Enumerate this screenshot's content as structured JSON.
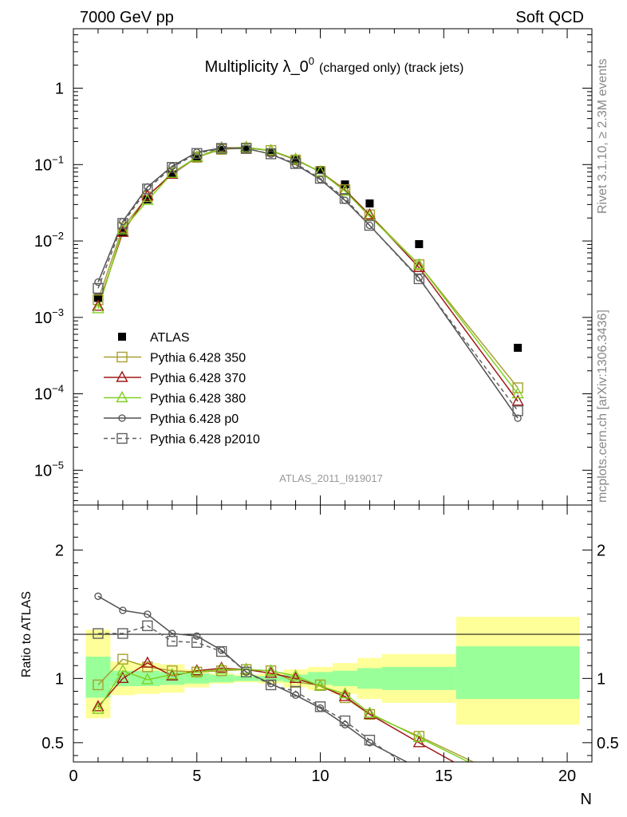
{
  "header": {
    "left": "7000 GeV pp",
    "right": "Soft QCD"
  },
  "side_labels": {
    "rivet": "Rivet 3.1.10, ≥ 2.3M events",
    "mcplots": "mcplots.cern.ch [arXiv:1306.3436]"
  },
  "chart_data": [
    {
      "panel": "main",
      "type": "line",
      "title_main": "Multiplicity λ_0",
      "title_sup": "0",
      "title_suffix": "(charged only) (track jets)",
      "watermark": "ATLAS_2011_I919017",
      "xlim": [
        0,
        21
      ],
      "ylim": [
        3.5e-06,
        6
      ],
      "yscale": "log",
      "yticks": [
        {
          "v": 1e-05,
          "base": "10",
          "exp": "−5"
        },
        {
          "v": 0.0001,
          "base": "10",
          "exp": "−4"
        },
        {
          "v": 0.001,
          "base": "10",
          "exp": "−3"
        },
        {
          "v": 0.01,
          "base": "10",
          "exp": "−2"
        },
        {
          "v": 0.1,
          "base": "10",
          "exp": "−1"
        },
        {
          "v": 1,
          "base": "1",
          "exp": ""
        }
      ],
      "legend_position": "bottom-left",
      "series": [
        {
          "name": "ATLAS",
          "color": "#000000",
          "marker": "filled-square",
          "line": "none",
          "x": [
            1,
            2,
            3,
            4,
            5,
            6,
            7,
            8,
            9,
            10,
            11,
            12,
            14,
            18
          ],
          "y": [
            0.0018,
            0.013,
            0.035,
            0.074,
            0.12,
            0.155,
            0.158,
            0.145,
            0.115,
            0.085,
            0.055,
            0.031,
            0.0091,
            0.0004
          ]
        },
        {
          "name": "Pythia 6.428 350",
          "color": "#a8a030",
          "marker": "open-square",
          "line": "solid",
          "x": [
            1,
            2,
            3,
            4,
            5,
            6,
            7,
            8,
            9,
            10,
            11,
            12,
            14,
            18
          ],
          "y": [
            0.0017,
            0.015,
            0.038,
            0.078,
            0.125,
            0.158,
            0.165,
            0.153,
            0.115,
            0.081,
            0.047,
            0.022,
            0.0049,
            0.00012
          ]
        },
        {
          "name": "Pythia 6.428 370",
          "color": "#a01818",
          "marker": "open-triangle",
          "line": "solid",
          "x": [
            1,
            2,
            3,
            4,
            5,
            6,
            7,
            8,
            9,
            10,
            11,
            12,
            14,
            18
          ],
          "y": [
            0.0014,
            0.013,
            0.039,
            0.075,
            0.125,
            0.165,
            0.168,
            0.152,
            0.117,
            0.08,
            0.046,
            0.022,
            0.0045,
            8e-05
          ]
        },
        {
          "name": "Pythia 6.428 380",
          "color": "#80d020",
          "marker": "open-triangle",
          "line": "solid",
          "x": [
            1,
            2,
            3,
            4,
            5,
            6,
            7,
            8,
            9,
            10,
            11,
            12,
            14,
            18
          ],
          "y": [
            0.0013,
            0.014,
            0.034,
            0.077,
            0.126,
            0.163,
            0.168,
            0.153,
            0.118,
            0.08,
            0.045,
            0.021,
            0.0049,
            0.0001
          ]
        },
        {
          "name": "Pythia 6.428 p0",
          "color": "#505050",
          "marker": "open-circle",
          "line": "solid",
          "x": [
            1,
            2,
            3,
            4,
            5,
            6,
            7,
            8,
            9,
            10,
            11,
            12,
            14,
            18
          ],
          "y": [
            0.0029,
            0.018,
            0.051,
            0.095,
            0.145,
            0.165,
            0.162,
            0.137,
            0.1,
            0.064,
            0.034,
            0.016,
            0.0033,
            4.8e-05
          ]
        },
        {
          "name": "Pythia 6.428 p2010",
          "color": "#606060",
          "marker": "open-square",
          "line": "dashed",
          "x": [
            1,
            2,
            3,
            4,
            5,
            6,
            7,
            8,
            9,
            10,
            11,
            12,
            14,
            18
          ],
          "y": [
            0.0024,
            0.017,
            0.048,
            0.092,
            0.14,
            0.163,
            0.162,
            0.138,
            0.103,
            0.066,
            0.036,
            0.016,
            0.0032,
            6e-05
          ]
        }
      ]
    },
    {
      "panel": "ratio",
      "type": "line",
      "xlabel": "N",
      "ylabel": "Ratio to ATLAS",
      "xlim": [
        0,
        21
      ],
      "ylim": [
        0.35,
        2.35
      ],
      "xticks": [
        0,
        5,
        10,
        15,
        20
      ],
      "yticks": [
        0.5,
        1,
        2
      ],
      "reference": 1,
      "bands": {
        "inner_color": "#99ff99",
        "outer_color": "#ffff99",
        "bins": [
          {
            "x0": 0.5,
            "x1": 1.5,
            "inner": [
              0.85,
              1.17
            ],
            "outer": [
              0.69,
              1.38
            ]
          },
          {
            "x0": 1.5,
            "x1": 2.5,
            "inner": [
              0.94,
              1.06
            ],
            "outer": [
              0.87,
              1.13
            ]
          },
          {
            "x0": 2.5,
            "x1": 3.5,
            "inner": [
              0.94,
              1.06
            ],
            "outer": [
              0.88,
              1.12
            ]
          },
          {
            "x0": 3.5,
            "x1": 4.5,
            "inner": [
              0.95,
              1.05
            ],
            "outer": [
              0.89,
              1.11
            ]
          },
          {
            "x0": 4.5,
            "x1": 5.5,
            "inner": [
              0.96,
              1.04
            ],
            "outer": [
              0.93,
              1.07
            ]
          },
          {
            "x0": 5.5,
            "x1": 6.5,
            "inner": [
              0.97,
              1.03
            ],
            "outer": [
              0.96,
              1.04
            ]
          },
          {
            "x0": 6.5,
            "x1": 7.5,
            "inner": [
              0.98,
              1.02
            ],
            "outer": [
              0.97,
              1.03
            ]
          },
          {
            "x0": 7.5,
            "x1": 8.5,
            "inner": [
              0.98,
              1.02
            ],
            "outer": [
              0.96,
              1.04
            ]
          },
          {
            "x0": 8.5,
            "x1": 9.5,
            "inner": [
              0.97,
              1.03
            ],
            "outer": [
              0.93,
              1.07
            ]
          },
          {
            "x0": 9.5,
            "x1": 10.5,
            "inner": [
              0.95,
              1.05
            ],
            "outer": [
              0.91,
              1.09
            ]
          },
          {
            "x0": 10.5,
            "x1": 11.5,
            "inner": [
              0.94,
              1.06
            ],
            "outer": [
              0.88,
              1.12
            ]
          },
          {
            "x0": 11.5,
            "x1": 12.5,
            "inner": [
              0.92,
              1.08
            ],
            "outer": [
              0.84,
              1.16
            ]
          },
          {
            "x0": 12.5,
            "x1": 15.5,
            "inner": [
              0.91,
              1.09
            ],
            "outer": [
              0.81,
              1.19
            ]
          },
          {
            "x0": 15.5,
            "x1": 20.5,
            "inner": [
              0.84,
              1.25
            ],
            "outer": [
              0.64,
              1.48
            ]
          }
        ]
      },
      "series": [
        {
          "name": "Pythia 6.428 350",
          "x": [
            1,
            2,
            3,
            4,
            5,
            6,
            7,
            8,
            9,
            10,
            11,
            12,
            14,
            16.2
          ],
          "y": [
            0.95,
            1.15,
            1.09,
            1.06,
            1.05,
            1.06,
            1.07,
            1.06,
            0.97,
            0.95,
            0.85,
            0.72,
            0.55,
            0.35
          ]
        },
        {
          "name": "Pythia 6.428 370",
          "x": [
            1,
            2,
            3,
            4,
            5,
            6,
            7,
            8,
            9,
            10,
            11,
            12,
            14,
            15.4
          ],
          "y": [
            0.78,
            1.0,
            1.12,
            1.02,
            1.06,
            1.08,
            1.07,
            1.04,
            1.0,
            0.94,
            0.86,
            0.72,
            0.5,
            0.35
          ]
        },
        {
          "name": "Pythia 6.428 380",
          "x": [
            1,
            2,
            3,
            4,
            5,
            6,
            7,
            8,
            9,
            10,
            11,
            12,
            14,
            16.0
          ],
          "y": [
            0.76,
            1.06,
            0.99,
            1.03,
            1.05,
            1.07,
            1.07,
            1.06,
            1.02,
            0.94,
            0.88,
            0.73,
            0.54,
            0.35
          ]
        },
        {
          "name": "Pythia 6.428 p0",
          "x": [
            1,
            2,
            3,
            4,
            5,
            6,
            7,
            8,
            9,
            10,
            11,
            12,
            13.5
          ],
          "y": [
            1.64,
            1.53,
            1.5,
            1.35,
            1.33,
            1.22,
            1.05,
            0.96,
            0.87,
            0.77,
            0.64,
            0.5,
            0.35
          ]
        },
        {
          "name": "Pythia 6.428 p2010",
          "x": [
            1,
            2,
            3,
            4,
            5,
            6,
            7,
            8,
            9,
            10,
            11,
            12,
            13.3
          ],
          "y": [
            1.35,
            1.35,
            1.41,
            1.29,
            1.28,
            1.21,
            1.05,
            0.95,
            0.9,
            0.78,
            0.67,
            0.52,
            0.35
          ]
        }
      ]
    }
  ]
}
